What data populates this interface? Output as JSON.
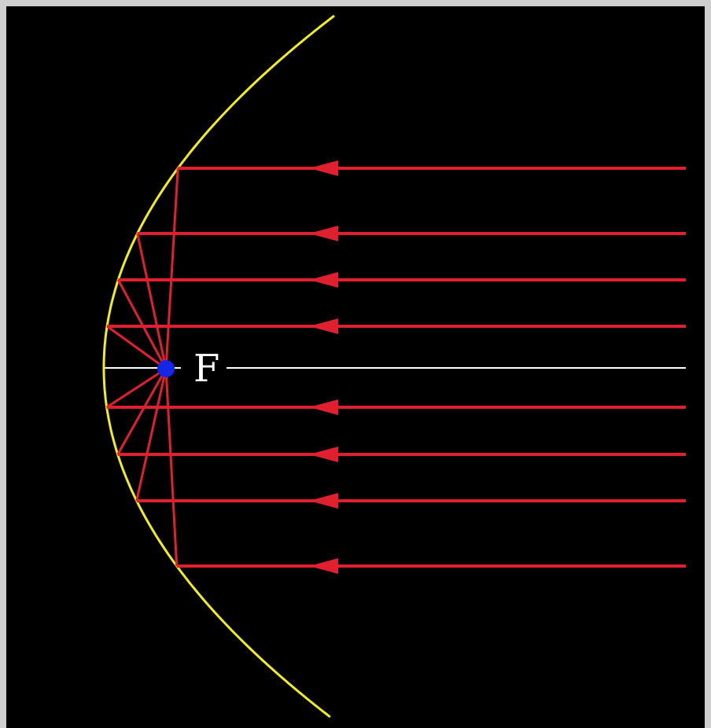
{
  "diagram": {
    "focus_label": "F",
    "colors": {
      "background": "#000000",
      "frame": "#cfcfcf",
      "parabola": "#f2ee1c",
      "rays": "#e0202f",
      "axis": "#ffffff",
      "focus": "#1426e6",
      "label": "#ffffff"
    },
    "icons": {
      "focus_point": "focus-dot-icon",
      "ray_arrow": "arrowhead-icon"
    }
  }
}
